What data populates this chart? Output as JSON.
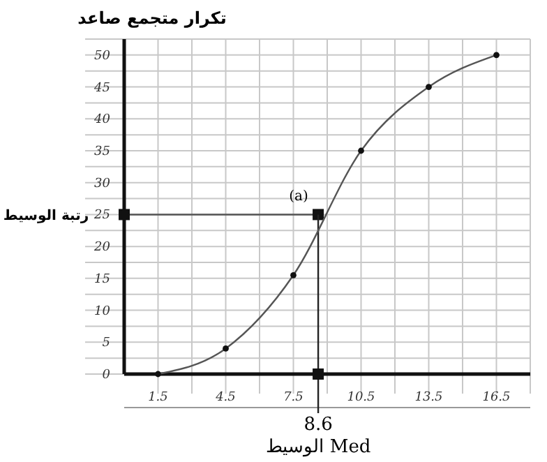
{
  "chart_data": {
    "type": "line",
    "ylabel": "تكرار متجمع صاعد",
    "x": [
      1.5,
      4.5,
      7.5,
      10.5,
      13.5,
      16.5
    ],
    "series": [
      {
        "color": "#555555",
        "values": [
          0,
          4,
          15.5,
          35,
          45,
          50
        ]
      }
    ],
    "marker": "circle",
    "line_style": "solid",
    "grid": true,
    "xlim": [
      0,
      18
    ],
    "ylim": [
      0,
      52.5
    ],
    "xticks": [
      1.5,
      {
        "value": 3,
        "label": null
      },
      4.5,
      {
        "value": 6,
        "label": null
      },
      7.5,
      {
        "value": 9,
        "label": null
      },
      10.5,
      {
        "value": 12,
        "label": null
      },
      13.5,
      {
        "value": 15,
        "label": null
      },
      16.5,
      {
        "value": 18,
        "label": null
      }
    ],
    "yticks": [
      0,
      {
        "value": 2.5,
        "label": null
      },
      5,
      {
        "value": 7.5,
        "label": null
      },
      10,
      {
        "value": 12.5,
        "label": null
      },
      15,
      {
        "value": 17.5,
        "label": null
      },
      20,
      {
        "value": 22.5,
        "label": null
      },
      25,
      {
        "value": 27.5,
        "label": null
      },
      30,
      {
        "value": 32.5,
        "label": null
      },
      35,
      {
        "value": 37.5,
        "label": null
      },
      40,
      {
        "value": 42.5,
        "label": null
      },
      45,
      {
        "value": 47.5,
        "label": null
      },
      50,
      {
        "value": 52.5,
        "label": null
      }
    ],
    "ref_lines": [
      {
        "axis": "y",
        "value": 25,
        "label": "رتبة الوسيط",
        "color": "#555555"
      },
      {
        "axis": "x",
        "value": 8.6,
        "label": "8.6",
        "color": "#222222"
      }
    ],
    "annotations": [
      {
        "text": "(a)",
        "x": 8.6,
        "y": 25
      },
      "الوسيط Med"
    ]
  }
}
